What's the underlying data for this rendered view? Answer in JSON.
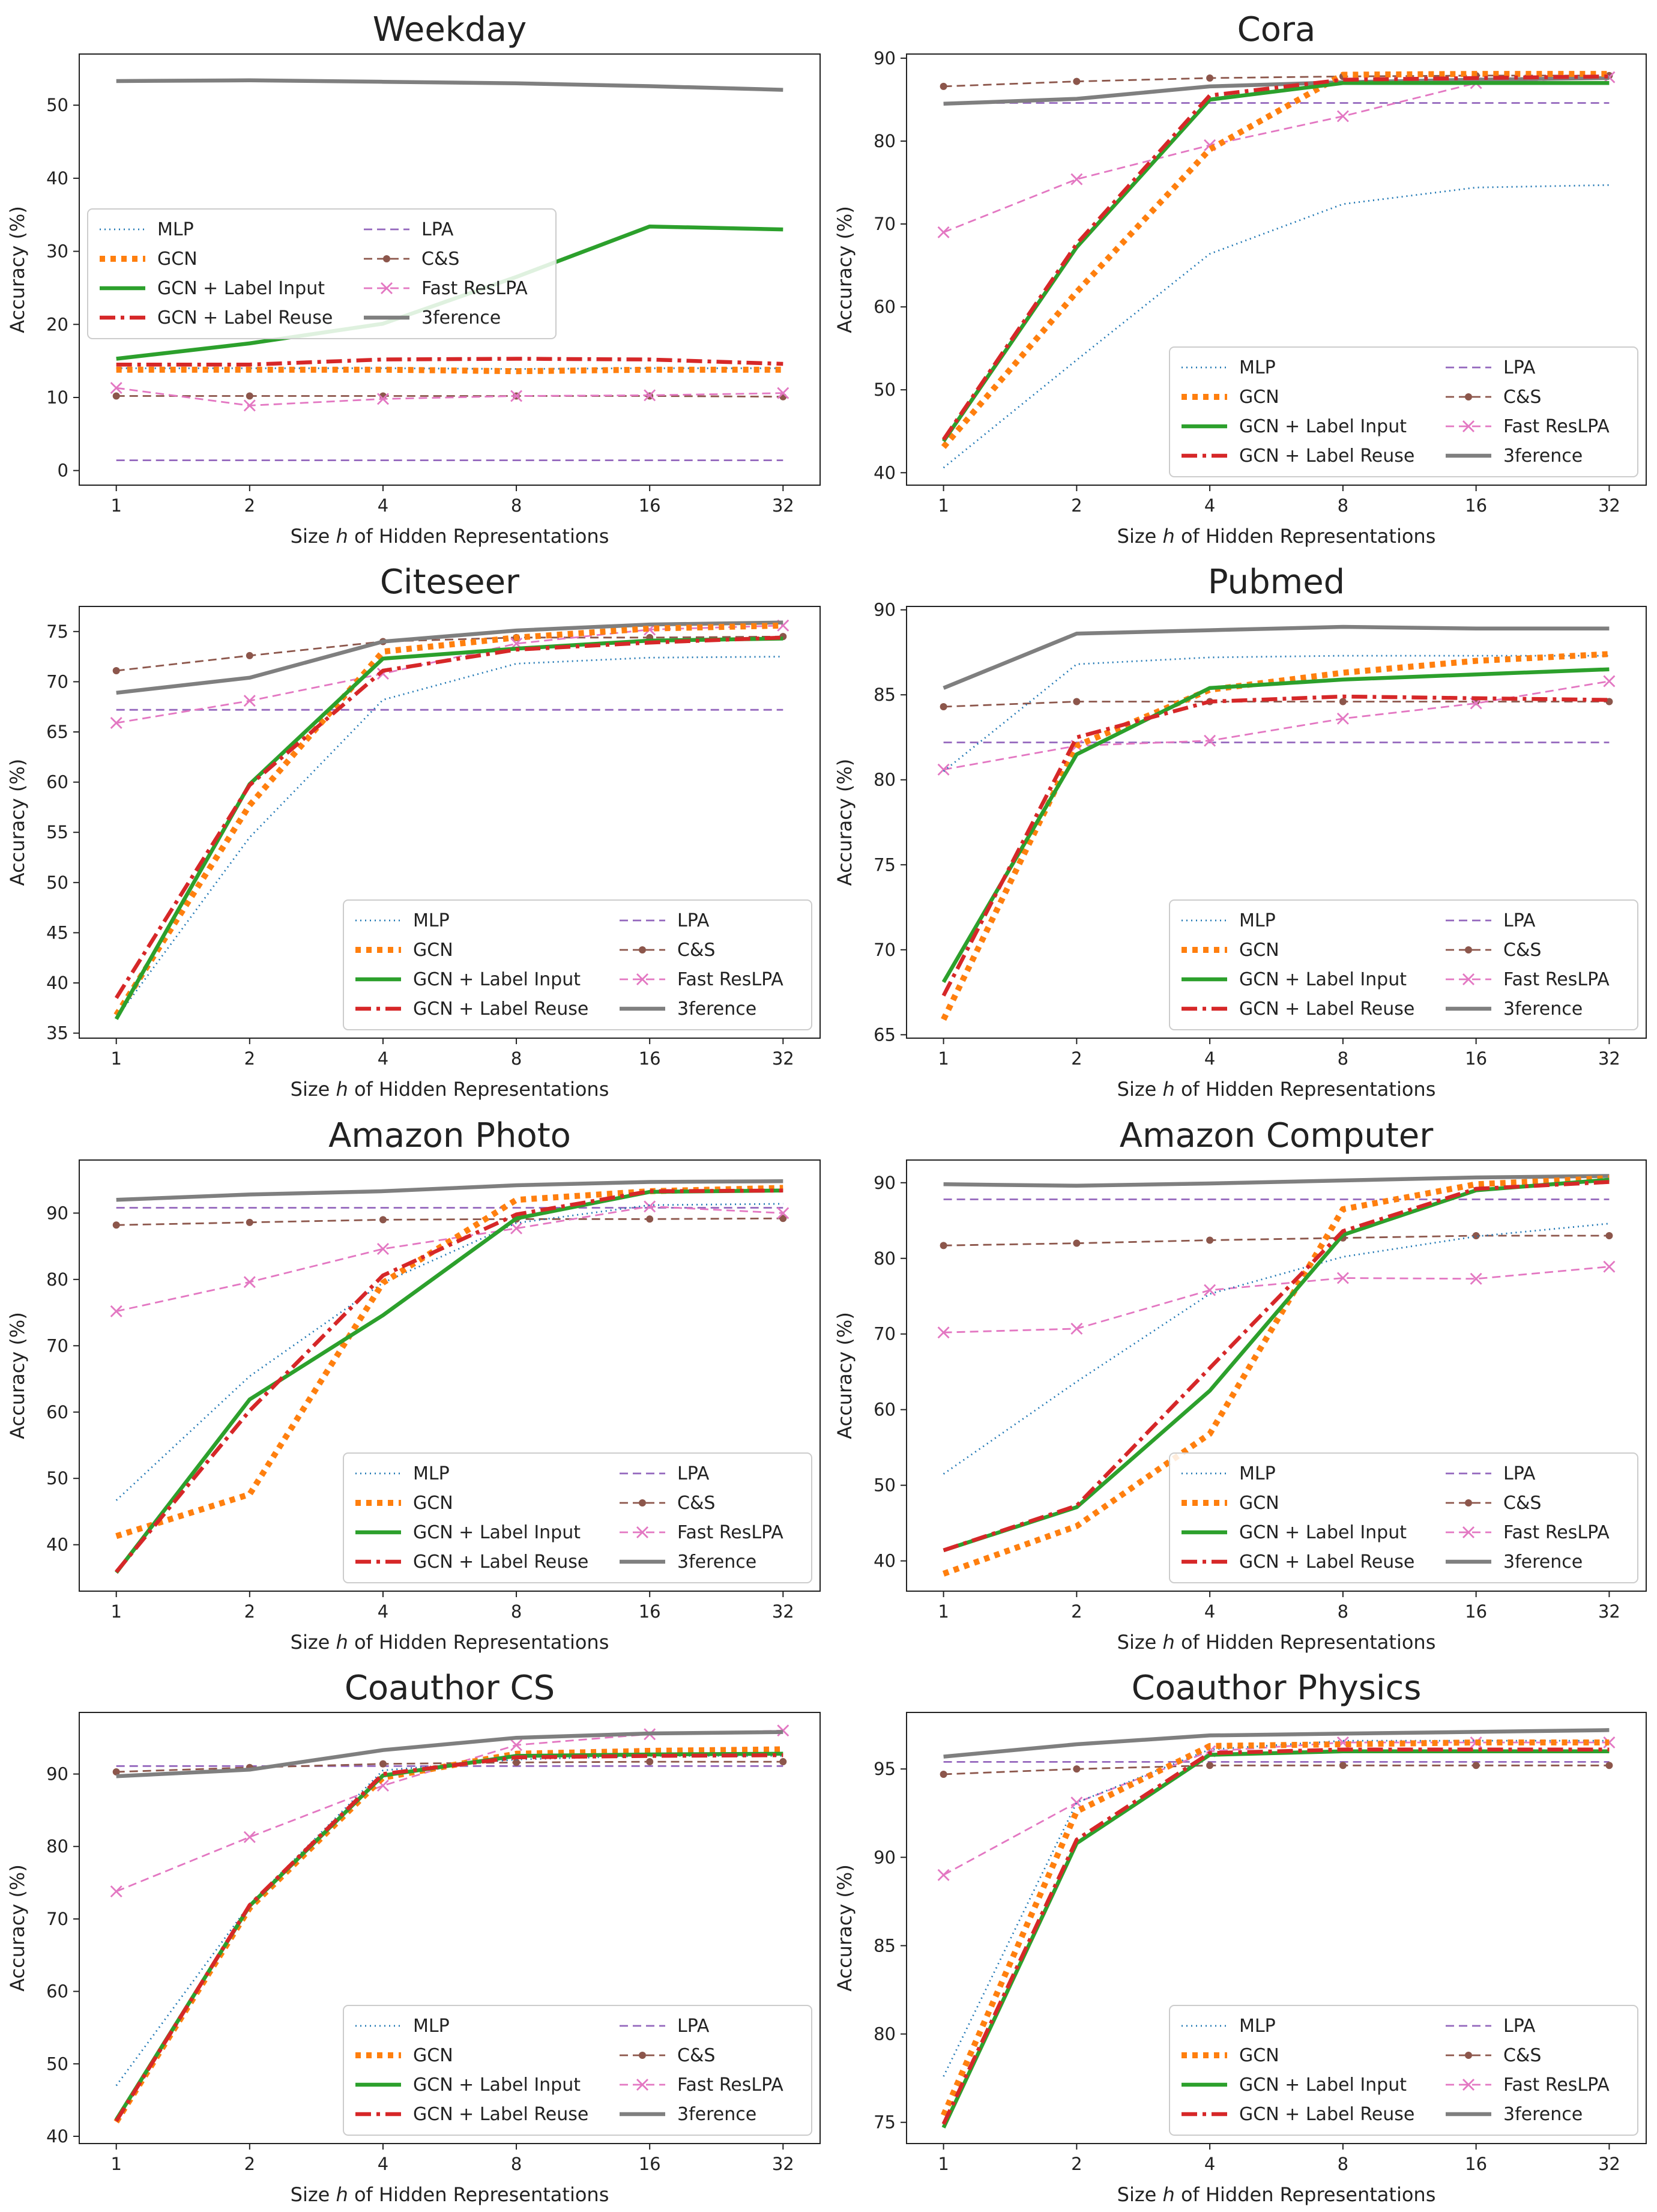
{
  "figure": {
    "xlabel": "Size h of Hidden Representations",
    "ylabel": "Accuracy (%)"
  },
  "styles": {
    "MLP": {
      "color": "#1f77b4",
      "dash": "2,6",
      "width": 2.8,
      "marker": "none"
    },
    "GCN": {
      "color": "#ff7f0e",
      "dash": "9,9",
      "width": 10,
      "marker": "none"
    },
    "GCN + Label Input": {
      "color": "#2ca02c",
      "dash": "",
      "width": 6.5,
      "marker": "none"
    },
    "GCN + Label Reuse": {
      "color": "#d62728",
      "dash": "26,9,6,9",
      "width": 6.5,
      "marker": "none"
    },
    "LPA": {
      "color": "#9467bd",
      "dash": "14,8",
      "width": 2.8,
      "marker": "none"
    },
    "C&S": {
      "color": "#8c564b",
      "dash": "14,8",
      "width": 2.8,
      "marker": "dot"
    },
    "Fast ResLPA": {
      "color": "#e377c2",
      "dash": "14,8",
      "width": 2.8,
      "marker": "x"
    },
    "3ference": {
      "color": "#7f7f7f",
      "dash": "",
      "width": 6.5,
      "marker": "none"
    }
  },
  "chart_data": [
    {
      "type": "line",
      "title": "Weekday",
      "xlabel": "Size h of Hidden Representations",
      "ylabel": "Accuracy (%)",
      "x": [
        "1",
        "2",
        "4",
        "8",
        "16",
        "32"
      ],
      "ylim": [
        -2,
        57
      ],
      "yticks": [
        0,
        10,
        20,
        30,
        40,
        50
      ],
      "legend_position": "center-left",
      "series": [
        {
          "name": "MLP",
          "values": [
            14.0,
            14.0,
            14.0,
            13.9,
            14.0,
            14.0
          ]
        },
        {
          "name": "GCN",
          "values": [
            13.8,
            13.8,
            13.8,
            13.6,
            13.8,
            13.8
          ]
        },
        {
          "name": "GCN + Label Input",
          "values": [
            15.3,
            17.4,
            20.1,
            26.5,
            33.4,
            33.0
          ]
        },
        {
          "name": "GCN + Label Reuse",
          "values": [
            14.5,
            14.5,
            15.2,
            15.3,
            15.2,
            14.6
          ]
        },
        {
          "name": "LPA",
          "values": [
            1.4,
            1.4,
            1.4,
            1.4,
            1.4,
            1.4
          ]
        },
        {
          "name": "C&S",
          "values": [
            10.2,
            10.2,
            10.2,
            10.2,
            10.2,
            10.1
          ]
        },
        {
          "name": "Fast ResLPA",
          "values": [
            11.3,
            8.9,
            9.8,
            10.2,
            10.3,
            10.6
          ]
        },
        {
          "name": "3ference",
          "values": [
            53.3,
            53.4,
            53.2,
            53.0,
            52.6,
            52.1
          ]
        }
      ]
    },
    {
      "type": "line",
      "title": "Cora",
      "xlabel": "Size h of Hidden Representations",
      "ylabel": "Accuracy (%)",
      "x": [
        "1",
        "2",
        "4",
        "8",
        "16",
        "32"
      ],
      "ylim": [
        38.5,
        90.5
      ],
      "yticks": [
        40,
        50,
        60,
        70,
        80,
        90
      ],
      "legend_position": "lower-right",
      "series": [
        {
          "name": "MLP",
          "values": [
            40.6,
            53.6,
            66.4,
            72.4,
            74.4,
            74.7
          ]
        },
        {
          "name": "GCN",
          "values": [
            43.1,
            61.8,
            79.0,
            88.0,
            88.1,
            88.1
          ]
        },
        {
          "name": "GCN + Label Input",
          "values": [
            43.8,
            67.2,
            85.0,
            87.0,
            87.0,
            87.0
          ]
        },
        {
          "name": "GCN + Label Reuse",
          "values": [
            44.0,
            67.6,
            85.5,
            87.4,
            87.6,
            87.8
          ]
        },
        {
          "name": "LPA",
          "values": [
            84.6,
            84.6,
            84.6,
            84.6,
            84.6,
            84.6
          ]
        },
        {
          "name": "C&S",
          "values": [
            86.6,
            87.2,
            87.6,
            87.8,
            87.9,
            87.9
          ]
        },
        {
          "name": "Fast ResLPA",
          "values": [
            69.0,
            75.4,
            79.5,
            83.0,
            87.0,
            87.7
          ]
        },
        {
          "name": "3ference",
          "values": [
            84.5,
            85.1,
            86.6,
            87.1,
            87.4,
            87.6
          ]
        }
      ]
    },
    {
      "type": "line",
      "title": "Citeseer",
      "xlabel": "Size h of Hidden Representations",
      "ylabel": "Accuracy (%)",
      "x": [
        "1",
        "2",
        "4",
        "8",
        "16",
        "32"
      ],
      "ylim": [
        34.5,
        77.5
      ],
      "yticks": [
        35,
        40,
        45,
        50,
        55,
        60,
        65,
        70,
        75
      ],
      "legend_position": "lower-right",
      "series": [
        {
          "name": "MLP",
          "values": [
            36.5,
            54.5,
            68.2,
            71.8,
            72.4,
            72.5
          ]
        },
        {
          "name": "GCN",
          "values": [
            36.8,
            57.7,
            73.0,
            74.4,
            75.3,
            75.6
          ]
        },
        {
          "name": "GCN + Label Input",
          "values": [
            36.4,
            59.8,
            72.3,
            73.3,
            74.1,
            74.3
          ]
        },
        {
          "name": "GCN + Label Reuse",
          "values": [
            38.5,
            59.7,
            71.1,
            73.2,
            73.9,
            74.4
          ]
        },
        {
          "name": "LPA",
          "values": [
            67.2,
            67.2,
            67.2,
            67.2,
            67.2,
            67.2
          ]
        },
        {
          "name": "C&S",
          "values": [
            71.1,
            72.6,
            74.0,
            74.4,
            74.4,
            74.5
          ]
        },
        {
          "name": "Fast ResLPA",
          "values": [
            65.9,
            68.1,
            70.8,
            73.8,
            75.2,
            75.6
          ]
        },
        {
          "name": "3ference",
          "values": [
            68.9,
            70.4,
            74.0,
            75.1,
            75.7,
            75.9
          ]
        }
      ]
    },
    {
      "type": "line",
      "title": "Pubmed",
      "xlabel": "Size h of Hidden Representations",
      "ylabel": "Accuracy (%)",
      "x": [
        "1",
        "2",
        "4",
        "8",
        "16",
        "32"
      ],
      "ylim": [
        64.8,
        90.2
      ],
      "yticks": [
        65,
        70,
        75,
        80,
        85,
        90
      ],
      "legend_position": "lower-right",
      "series": [
        {
          "name": "MLP",
          "values": [
            80.5,
            86.8,
            87.2,
            87.3,
            87.3,
            87.3
          ]
        },
        {
          "name": "GCN",
          "values": [
            65.9,
            82.0,
            85.3,
            86.3,
            87.0,
            87.4
          ]
        },
        {
          "name": "GCN + Label Input",
          "values": [
            68.1,
            81.5,
            85.4,
            85.9,
            86.2,
            86.5
          ]
        },
        {
          "name": "GCN + Label Reuse",
          "values": [
            67.3,
            82.5,
            84.6,
            84.9,
            84.8,
            84.7
          ]
        },
        {
          "name": "LPA",
          "values": [
            82.2,
            82.2,
            82.2,
            82.2,
            82.2,
            82.2
          ]
        },
        {
          "name": "C&S",
          "values": [
            84.3,
            84.6,
            84.6,
            84.6,
            84.6,
            84.6
          ]
        },
        {
          "name": "Fast ResLPA",
          "values": [
            80.6,
            82.0,
            82.3,
            83.6,
            84.5,
            85.8
          ]
        },
        {
          "name": "3ference",
          "values": [
            85.4,
            88.6,
            88.8,
            89.0,
            88.9,
            88.9
          ]
        }
      ]
    },
    {
      "type": "line",
      "title": "Amazon Photo",
      "xlabel": "Size h of Hidden Representations",
      "ylabel": "Accuracy (%)",
      "x": [
        "1",
        "2",
        "4",
        "8",
        "16",
        "32"
      ],
      "ylim": [
        33,
        98
      ],
      "yticks": [
        40,
        50,
        60,
        70,
        80,
        90
      ],
      "legend_position": "lower-right",
      "series": [
        {
          "name": "MLP",
          "values": [
            46.7,
            65.4,
            79.5,
            88.5,
            91.2,
            91.4
          ]
        },
        {
          "name": "GCN",
          "values": [
            41.3,
            47.6,
            79.5,
            92.0,
            93.3,
            93.8
          ]
        },
        {
          "name": "GCN + Label Input",
          "values": [
            35.8,
            61.9,
            74.6,
            89.2,
            93.2,
            93.4
          ]
        },
        {
          "name": "GCN + Label Reuse",
          "values": [
            35.9,
            60.2,
            80.6,
            89.8,
            93.3,
            93.4
          ]
        },
        {
          "name": "LPA",
          "values": [
            90.8,
            90.8,
            90.8,
            90.8,
            90.8,
            90.8
          ]
        },
        {
          "name": "C&S",
          "values": [
            88.2,
            88.6,
            89.0,
            89.1,
            89.1,
            89.2
          ]
        },
        {
          "name": "Fast ResLPA",
          "values": [
            75.2,
            79.6,
            84.6,
            87.7,
            91.0,
            90.0
          ]
        },
        {
          "name": "3ference",
          "values": [
            92.0,
            92.8,
            93.3,
            94.2,
            94.7,
            94.8
          ]
        }
      ]
    },
    {
      "type": "line",
      "title": "Amazon Computer",
      "xlabel": "Size h of Hidden Representations",
      "ylabel": "Accuracy (%)",
      "x": [
        "1",
        "2",
        "4",
        "8",
        "16",
        "32"
      ],
      "ylim": [
        36,
        93
      ],
      "yticks": [
        40,
        50,
        60,
        70,
        80,
        90
      ],
      "legend_position": "lower-right",
      "series": [
        {
          "name": "MLP",
          "values": [
            51.5,
            63.7,
            75.3,
            80.2,
            82.9,
            84.6
          ]
        },
        {
          "name": "GCN",
          "values": [
            38.3,
            44.6,
            56.8,
            86.5,
            89.8,
            90.6
          ]
        },
        {
          "name": "GCN + Label Input",
          "values": [
            41.4,
            47.1,
            62.5,
            83.1,
            89.0,
            90.4
          ]
        },
        {
          "name": "GCN + Label Reuse",
          "values": [
            41.4,
            47.3,
            65.5,
            83.6,
            89.2,
            90.1
          ]
        },
        {
          "name": "LPA",
          "values": [
            87.8,
            87.8,
            87.8,
            87.8,
            87.8,
            87.8
          ]
        },
        {
          "name": "C&S",
          "values": [
            81.7,
            82.0,
            82.4,
            82.7,
            83.0,
            83.0
          ]
        },
        {
          "name": "Fast ResLPA",
          "values": [
            70.2,
            70.7,
            75.8,
            77.4,
            77.3,
            78.9
          ]
        },
        {
          "name": "3ference",
          "values": [
            89.8,
            89.6,
            89.9,
            90.3,
            90.7,
            90.9
          ]
        }
      ]
    },
    {
      "type": "line",
      "title": "Coauthor CS",
      "xlabel": "Size h of Hidden Representations",
      "ylabel": "Accuracy (%)",
      "x": [
        "1",
        "2",
        "4",
        "8",
        "16",
        "32"
      ],
      "ylim": [
        39,
        98.5
      ],
      "yticks": [
        40,
        50,
        60,
        70,
        80,
        90
      ],
      "legend_position": "lower-right",
      "series": [
        {
          "name": "MLP",
          "values": [
            47.0,
            72.0,
            90.5,
            92.0,
            92.5,
            92.5
          ]
        },
        {
          "name": "GCN",
          "values": [
            42.0,
            71.5,
            89.5,
            92.8,
            93.2,
            93.4
          ]
        },
        {
          "name": "GCN + Label Input",
          "values": [
            42.3,
            71.8,
            89.8,
            92.5,
            92.7,
            92.8
          ]
        },
        {
          "name": "GCN + Label Reuse",
          "values": [
            42.1,
            71.9,
            90.0,
            92.3,
            92.5,
            92.6
          ]
        },
        {
          "name": "LPA",
          "values": [
            91.1,
            91.1,
            91.1,
            91.1,
            91.1,
            91.1
          ]
        },
        {
          "name": "C&S",
          "values": [
            90.3,
            90.9,
            91.4,
            91.6,
            91.7,
            91.7
          ]
        },
        {
          "name": "Fast ResLPA",
          "values": [
            73.8,
            81.3,
            88.4,
            94.0,
            95.5,
            96.0
          ]
        },
        {
          "name": "3ference",
          "values": [
            89.7,
            90.6,
            93.3,
            95.0,
            95.6,
            95.8
          ]
        }
      ]
    },
    {
      "type": "line",
      "title": "Coauthor Physics",
      "xlabel": "Size h of Hidden Representations",
      "ylabel": "Accuracy (%)",
      "x": [
        "1",
        "2",
        "4",
        "8",
        "16",
        "32"
      ],
      "ylim": [
        73.8,
        98.2
      ],
      "yticks": [
        75,
        80,
        85,
        90,
        95
      ],
      "legend_position": "lower-right",
      "series": [
        {
          "name": "MLP",
          "values": [
            77.6,
            93.1,
            96.1,
            96.6,
            96.6,
            96.6
          ]
        },
        {
          "name": "GCN",
          "values": [
            75.4,
            92.6,
            96.3,
            96.4,
            96.5,
            96.5
          ]
        },
        {
          "name": "GCN + Label Input",
          "values": [
            74.7,
            90.8,
            95.8,
            96.0,
            96.0,
            96.0
          ]
        },
        {
          "name": "GCN + Label Reuse",
          "values": [
            74.9,
            91.0,
            95.9,
            96.1,
            96.1,
            96.1
          ]
        },
        {
          "name": "LPA",
          "values": [
            95.4,
            95.4,
            95.4,
            95.4,
            95.4,
            95.4
          ]
        },
        {
          "name": "C&S",
          "values": [
            94.7,
            95.0,
            95.2,
            95.2,
            95.2,
            95.2
          ]
        },
        {
          "name": "Fast ResLPA",
          "values": [
            89.0,
            93.1,
            96.0,
            96.5,
            96.5,
            96.5
          ]
        },
        {
          "name": "3ference",
          "values": [
            95.7,
            96.4,
            96.9,
            97.0,
            97.1,
            97.2
          ]
        }
      ]
    }
  ]
}
